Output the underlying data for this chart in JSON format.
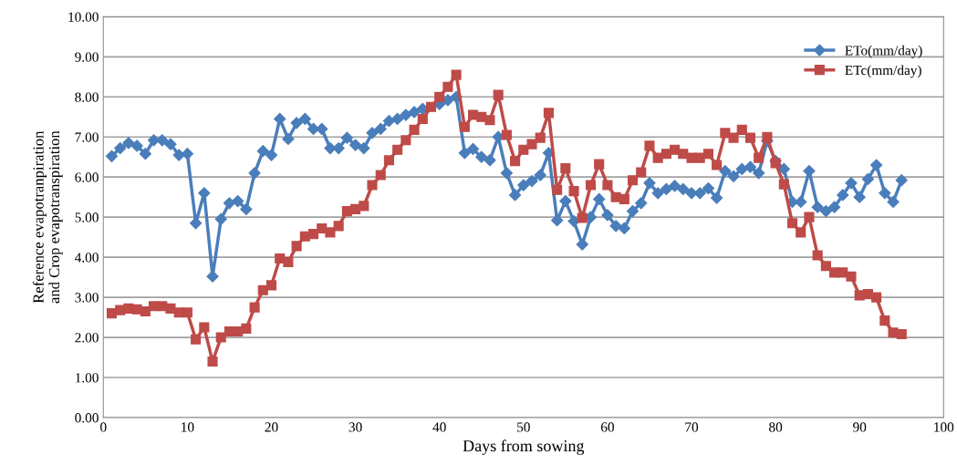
{
  "chart_data": {
    "type": "line",
    "xlabel": "Days from sowing",
    "ylabel": "Reference evapotranpiration\nand Crop evapotranspiration",
    "x": [
      1,
      2,
      3,
      4,
      5,
      6,
      7,
      8,
      9,
      10,
      11,
      12,
      13,
      14,
      15,
      16,
      17,
      18,
      19,
      20,
      21,
      22,
      23,
      24,
      25,
      26,
      27,
      28,
      29,
      30,
      31,
      32,
      33,
      34,
      35,
      36,
      37,
      38,
      39,
      40,
      41,
      42,
      43,
      44,
      45,
      46,
      47,
      48,
      49,
      50,
      51,
      52,
      53,
      54,
      55,
      56,
      57,
      58,
      59,
      60,
      61,
      62,
      63,
      64,
      65,
      66,
      67,
      68,
      69,
      70,
      71,
      72,
      73,
      74,
      75,
      76,
      77,
      78,
      79,
      80,
      81,
      82,
      83,
      84,
      85,
      86,
      87,
      88,
      89,
      90,
      91,
      92,
      93,
      94,
      95
    ],
    "series": [
      {
        "name": "ETo(mm/day)",
        "color": "#4a7ebb",
        "marker": "diamond",
        "values": [
          6.52,
          6.72,
          6.85,
          6.78,
          6.58,
          6.92,
          6.92,
          6.82,
          6.55,
          6.58,
          4.85,
          5.6,
          3.52,
          4.95,
          5.35,
          5.4,
          5.2,
          6.1,
          6.65,
          6.55,
          7.45,
          6.95,
          7.35,
          7.45,
          7.2,
          7.2,
          6.72,
          6.72,
          6.98,
          6.8,
          6.72,
          7.1,
          7.2,
          7.4,
          7.45,
          7.55,
          7.62,
          7.7,
          null,
          7.82,
          7.92,
          8.0,
          6.6,
          6.7,
          6.5,
          6.42,
          7.0,
          6.1,
          5.55,
          5.8,
          5.9,
          6.05,
          6.6,
          4.92,
          5.4,
          4.9,
          4.32,
          5.0,
          5.45,
          5.05,
          4.78,
          4.72,
          5.15,
          5.35,
          5.85,
          5.6,
          5.7,
          5.78,
          5.7,
          5.6,
          5.6,
          5.72,
          5.48,
          6.15,
          6.02,
          6.2,
          6.25,
          6.1,
          6.9,
          6.4,
          6.2,
          5.38,
          5.38,
          6.15,
          5.25,
          5.15,
          5.25,
          5.55,
          5.85,
          5.5,
          5.95,
          6.3,
          5.6,
          5.38,
          5.92
        ]
      },
      {
        "name": "ETc(mm/day)",
        "color": "#be4b48",
        "marker": "square",
        "values": [
          2.6,
          2.68,
          2.72,
          2.7,
          2.65,
          2.78,
          2.78,
          2.72,
          2.62,
          2.62,
          1.95,
          2.25,
          1.4,
          2.0,
          2.15,
          2.15,
          2.22,
          2.75,
          3.18,
          3.3,
          3.97,
          3.88,
          4.28,
          4.52,
          4.58,
          4.72,
          4.62,
          4.78,
          5.15,
          5.2,
          5.28,
          5.8,
          6.05,
          6.42,
          6.68,
          6.92,
          7.18,
          7.45,
          7.75,
          8.0,
          8.25,
          8.55,
          7.25,
          7.55,
          7.5,
          7.42,
          8.05,
          7.05,
          6.4,
          6.68,
          6.82,
          6.98,
          7.6,
          5.68,
          6.22,
          5.65,
          4.98,
          5.8,
          6.32,
          5.8,
          5.5,
          5.45,
          5.92,
          6.12,
          6.78,
          6.48,
          6.58,
          6.68,
          6.58,
          6.48,
          6.48,
          6.58,
          6.3,
          7.1,
          6.98,
          7.18,
          6.98,
          6.48,
          7.0,
          6.35,
          5.82,
          4.85,
          4.62,
          5.0,
          4.05,
          3.78,
          3.62,
          3.62,
          3.52,
          3.05,
          3.08,
          3.0,
          2.42,
          2.12,
          2.08
        ]
      }
    ],
    "xlim": [
      0,
      100
    ],
    "xticks": [
      0,
      10,
      20,
      30,
      40,
      50,
      60,
      70,
      80,
      90,
      100
    ],
    "ylim": [
      0,
      10
    ],
    "yticks": [
      {
        "value": 0,
        "label": "0.00"
      },
      {
        "value": 1,
        "label": "1.00"
      },
      {
        "value": 2,
        "label": "2.00"
      },
      {
        "value": 3,
        "label": "3.00"
      },
      {
        "value": 4,
        "label": "4.00"
      },
      {
        "value": 5,
        "label": "5.00"
      },
      {
        "value": 6,
        "label": "6.00"
      },
      {
        "value": 7,
        "label": "7.00"
      },
      {
        "value": 8,
        "label": "8.00"
      },
      {
        "value": 9,
        "label": "9.00"
      },
      {
        "value": 10,
        "label": "10.00"
      }
    ],
    "grid": "y",
    "legend": "top right",
    "line_style": "solid"
  }
}
